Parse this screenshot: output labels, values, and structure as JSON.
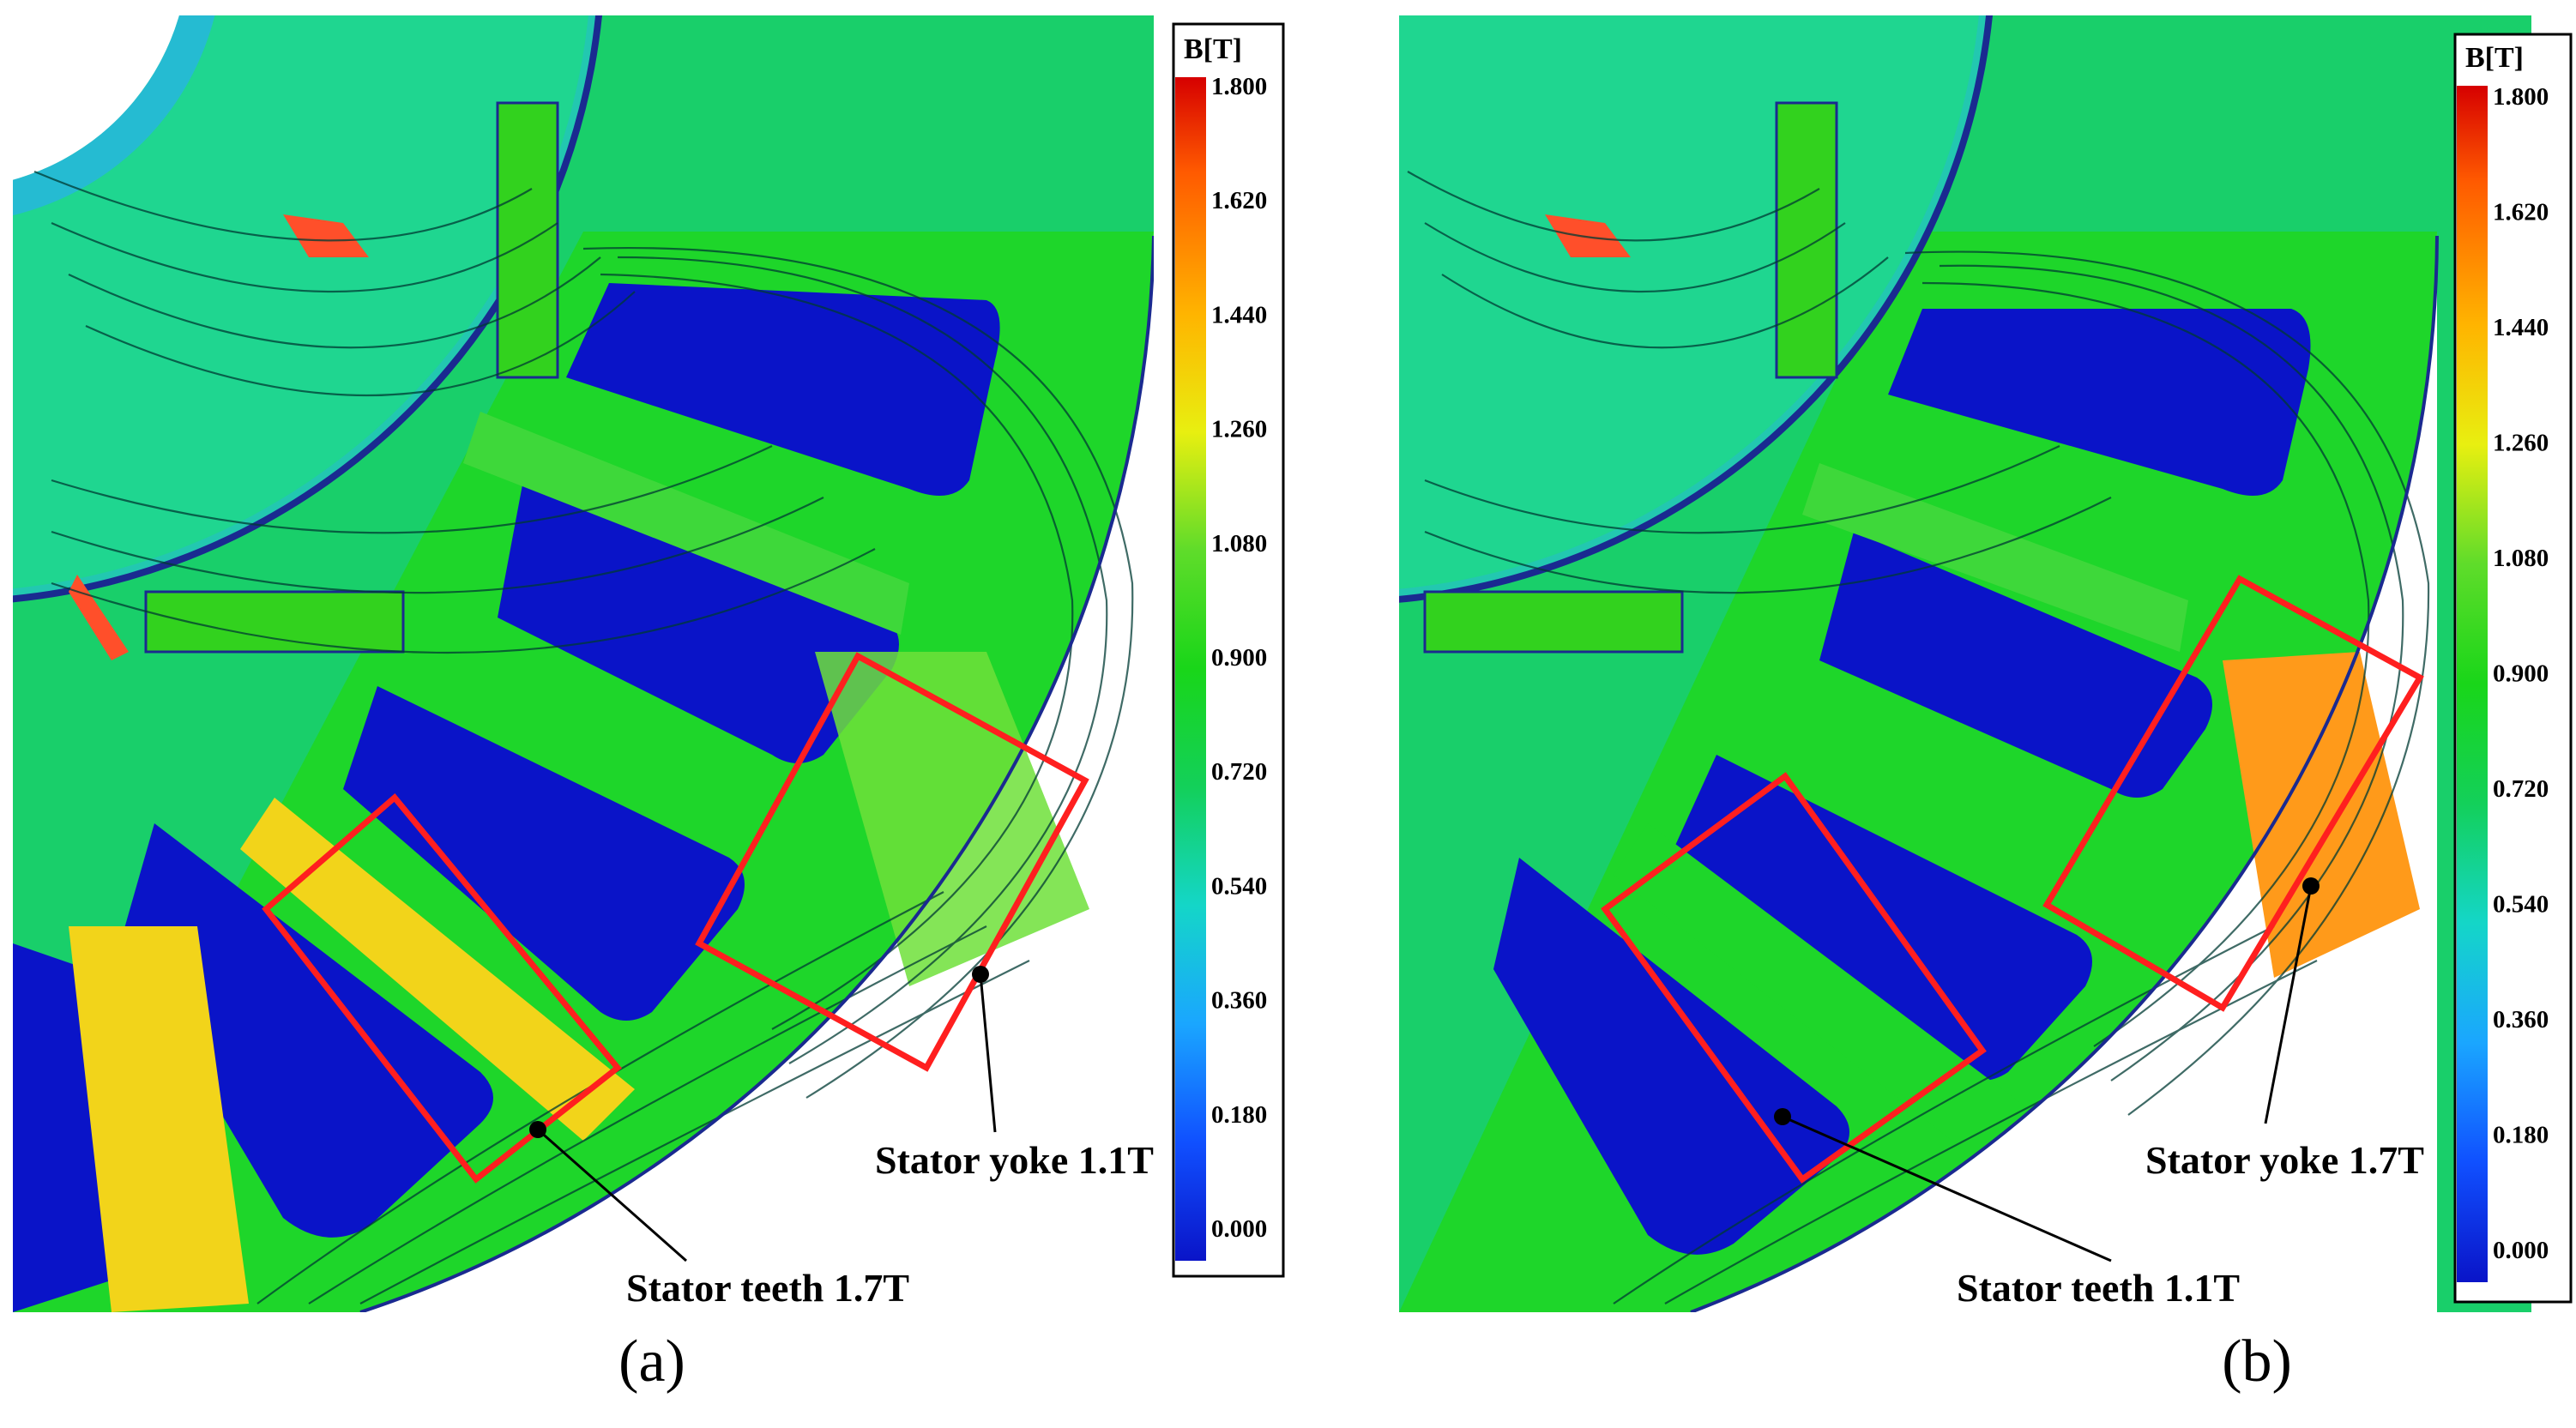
{
  "colors": {
    "background": "#ffffff",
    "flux_line": "#003a33",
    "highlight_box": "#ff1f1f",
    "field_low": "#0a14c8",
    "field_mid": "#19d619",
    "field_high": "#ff1a00"
  },
  "colorbar": {
    "title": "B[T]",
    "ticks": [
      "1.800",
      "1.620",
      "1.440",
      "1.260",
      "1.080",
      "0.900",
      "0.720",
      "0.540",
      "0.360",
      "0.180",
      "0.000"
    ],
    "stops": [
      "#d60000",
      "#ff5a00",
      "#ffb400",
      "#f0f000",
      "#7fe02a",
      "#19d619",
      "#13d03a",
      "#14d6c8",
      "#1aa6ff",
      "#1050ff",
      "#0a14c8"
    ]
  },
  "panels": [
    {
      "label": "(a)",
      "yoke_annotation": "Stator yoke 1.1T",
      "teeth_annotation": "Stator teeth 1.7T",
      "teeth_level_T": 1.7,
      "yoke_level_T": 1.1
    },
    {
      "label": "(b)",
      "yoke_annotation": "Stator yoke 1.7T",
      "teeth_annotation": "Stator teeth 1.1T",
      "teeth_level_T": 1.1,
      "yoke_level_T": 1.7
    }
  ]
}
